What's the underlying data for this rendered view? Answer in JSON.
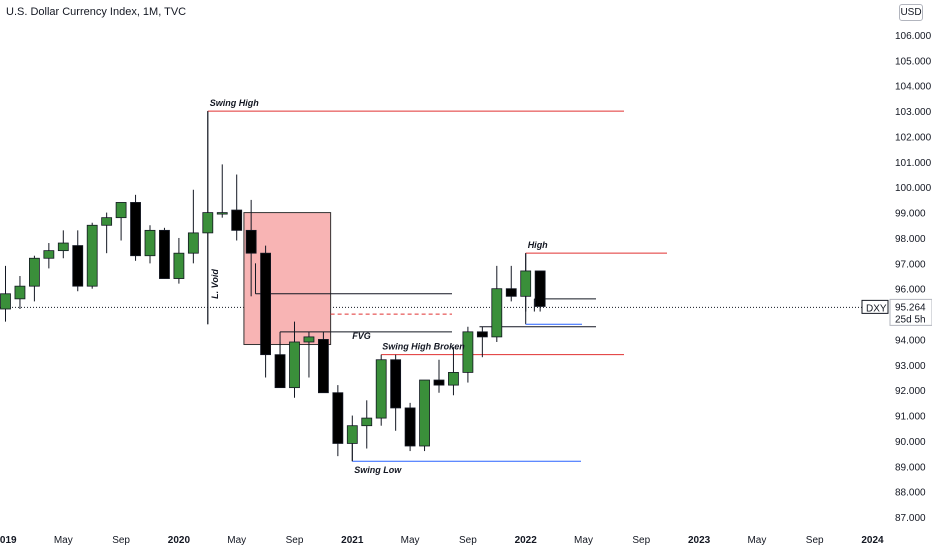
{
  "header": {
    "title": "U.S. Dollar Currency Index, 1M, TVC",
    "currency_badge": "USD"
  },
  "colors": {
    "bull": "#3a8f3a",
    "bear": "#000000",
    "red_line": "#e03131",
    "blue_line": "#2962ff",
    "box_fill": "#f8b4b4",
    "box_stroke": "#333333"
  },
  "price_tag": {
    "symbol": "DXY",
    "price": "95.264",
    "countdown": "25d 5h"
  },
  "chart_data": {
    "type": "candlestick",
    "title": "U.S. Dollar Currency Index, 1M, TVC",
    "ylim": [
      86.6,
      106.2
    ],
    "x_tick_labels": [
      "2019",
      "May",
      "Sep",
      "2020",
      "May",
      "Sep",
      "2021",
      "May",
      "Sep",
      "2022",
      "May",
      "Sep",
      "2023",
      "May",
      "Sep",
      "2024"
    ],
    "y_tick_labels": [
      "87.000",
      "88.000",
      "89.000",
      "90.000",
      "91.000",
      "92.000",
      "93.000",
      "94.000",
      "95.000",
      "96.000",
      "97.000",
      "98.000",
      "99.000",
      "100.000",
      "101.000",
      "102.000",
      "103.000",
      "104.000",
      "105.000",
      "106.000"
    ],
    "candles": [
      {
        "month": "2019-01",
        "o": 95.2,
        "h": 96.9,
        "l": 94.7,
        "c": 95.8
      },
      {
        "month": "2019-02",
        "o": 95.6,
        "h": 96.5,
        "l": 95.2,
        "c": 96.1
      },
      {
        "month": "2019-03",
        "o": 96.1,
        "h": 97.3,
        "l": 95.5,
        "c": 97.2
      },
      {
        "month": "2019-04",
        "o": 97.2,
        "h": 97.8,
        "l": 96.8,
        "c": 97.5
      },
      {
        "month": "2019-05",
        "o": 97.5,
        "h": 98.3,
        "l": 97.2,
        "c": 97.8
      },
      {
        "month": "2019-06",
        "o": 97.7,
        "h": 98.3,
        "l": 95.9,
        "c": 96.1
      },
      {
        "month": "2019-07",
        "o": 96.1,
        "h": 98.6,
        "l": 96.0,
        "c": 98.5
      },
      {
        "month": "2019-08",
        "o": 98.5,
        "h": 99.0,
        "l": 97.4,
        "c": 98.8
      },
      {
        "month": "2019-09",
        "o": 98.8,
        "h": 99.4,
        "l": 97.9,
        "c": 99.4
      },
      {
        "month": "2019-10",
        "o": 99.4,
        "h": 99.7,
        "l": 97.1,
        "c": 97.3
      },
      {
        "month": "2019-11",
        "o": 97.3,
        "h": 98.5,
        "l": 97.0,
        "c": 98.3
      },
      {
        "month": "2019-12",
        "o": 98.3,
        "h": 98.4,
        "l": 96.4,
        "c": 96.4
      },
      {
        "month": "2020-01",
        "o": 96.4,
        "h": 98.0,
        "l": 96.2,
        "c": 97.4
      },
      {
        "month": "2020-02",
        "o": 97.4,
        "h": 99.9,
        "l": 97.0,
        "c": 98.2
      },
      {
        "month": "2020-03",
        "o": 98.2,
        "h": 103.0,
        "l": 94.6,
        "c": 99.0
      },
      {
        "month": "2020-04",
        "o": 99.0,
        "h": 100.9,
        "l": 98.8,
        "c": 99.0
      },
      {
        "month": "2020-05",
        "o": 99.1,
        "h": 100.5,
        "l": 97.9,
        "c": 98.3
      },
      {
        "month": "2020-06",
        "o": 98.3,
        "h": 99.5,
        "l": 95.7,
        "c": 97.4
      },
      {
        "month": "2020-07",
        "o": 97.4,
        "h": 97.7,
        "l": 92.5,
        "c": 93.4
      },
      {
        "month": "2020-08",
        "o": 93.4,
        "h": 93.9,
        "l": 92.1,
        "c": 92.1
      },
      {
        "month": "2020-09",
        "o": 92.1,
        "h": 94.7,
        "l": 91.7,
        "c": 93.9
      },
      {
        "month": "2020-10",
        "o": 93.9,
        "h": 94.3,
        "l": 92.5,
        "c": 94.1
      },
      {
        "month": "2020-11",
        "o": 94.0,
        "h": 94.3,
        "l": 91.9,
        "c": 91.9
      },
      {
        "month": "2020-12",
        "o": 91.9,
        "h": 92.2,
        "l": 89.4,
        "c": 89.9
      },
      {
        "month": "2021-01",
        "o": 89.9,
        "h": 91.0,
        "l": 89.2,
        "c": 90.6
      },
      {
        "month": "2021-02",
        "o": 90.6,
        "h": 91.6,
        "l": 89.7,
        "c": 90.9
      },
      {
        "month": "2021-03",
        "o": 90.9,
        "h": 93.4,
        "l": 90.6,
        "c": 93.2
      },
      {
        "month": "2021-04",
        "o": 93.2,
        "h": 93.4,
        "l": 90.4,
        "c": 91.3
      },
      {
        "month": "2021-05",
        "o": 91.3,
        "h": 91.5,
        "l": 89.6,
        "c": 89.8
      },
      {
        "month": "2021-06",
        "o": 89.8,
        "h": 92.4,
        "l": 89.6,
        "c": 92.4
      },
      {
        "month": "2021-07",
        "o": 92.4,
        "h": 93.2,
        "l": 91.9,
        "c": 92.2
      },
      {
        "month": "2021-08",
        "o": 92.2,
        "h": 93.7,
        "l": 91.8,
        "c": 92.7
      },
      {
        "month": "2021-09",
        "o": 92.7,
        "h": 94.5,
        "l": 92.3,
        "c": 94.3
      },
      {
        "month": "2021-10",
        "o": 94.3,
        "h": 94.5,
        "l": 93.3,
        "c": 94.1
      },
      {
        "month": "2021-11",
        "o": 94.1,
        "h": 96.9,
        "l": 93.9,
        "c": 96.0
      },
      {
        "month": "2021-12",
        "o": 96.0,
        "h": 96.9,
        "l": 95.5,
        "c": 95.7
      },
      {
        "month": "2022-01",
        "o": 95.7,
        "h": 97.4,
        "l": 95.1,
        "c": 96.7
      },
      {
        "month": "2022-02",
        "o": 96.7,
        "h": 96.7,
        "l": 95.1,
        "c": 95.3
      }
    ],
    "annotations": [
      {
        "label": "Swing High",
        "level": 103.0
      },
      {
        "label": "High",
        "level": 97.4
      },
      {
        "label": "Swing High Broken",
        "level": 93.4
      },
      {
        "label": "Swing Low",
        "level": 89.2
      },
      {
        "label": "FVG",
        "level": 94.1
      },
      {
        "label": "L. Void",
        "level_top": 99.0,
        "level_bottom": 93.8
      }
    ]
  }
}
